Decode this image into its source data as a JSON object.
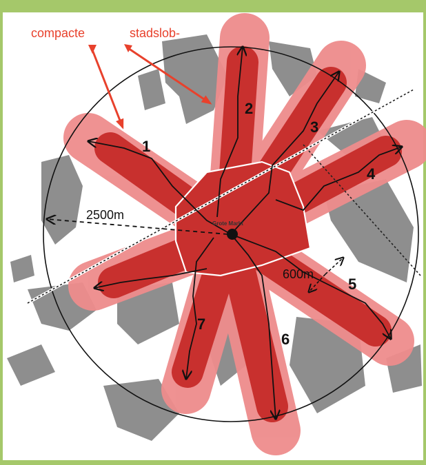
{
  "annotations": {
    "caption_left": "compacte",
    "caption_right": "stadslob-",
    "color": "#e8412c"
  },
  "center": {
    "label": "Grote Markt"
  },
  "radius_label": "2500m",
  "width_label": "600m",
  "lobes": [
    {
      "number": "1"
    },
    {
      "number": "2"
    },
    {
      "number": "3"
    },
    {
      "number": "4"
    },
    {
      "number": "5"
    },
    {
      "number": "6"
    },
    {
      "number": "7"
    }
  ],
  "colors": {
    "frame_green": "#a5c86a",
    "lobe_light": "#ee8c8c",
    "lobe_dark": "#c8302e",
    "urban_gray": "#8e8e8e",
    "background": "#ffffff"
  }
}
